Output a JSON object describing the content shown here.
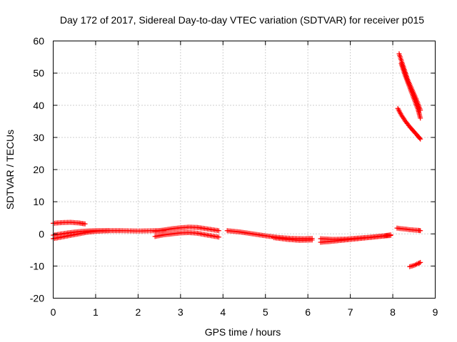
{
  "chart_data": {
    "type": "scatter",
    "title": "Day 172 of 2017, Sidereal Day-to-day VTEC variation (SDTVAR) for receiver p015",
    "xlabel": "GPS time / hours",
    "ylabel": "SDTVAR / TECUs",
    "xlim": [
      0,
      9
    ],
    "ylim": [
      -20,
      60
    ],
    "xticks": [
      "0",
      "1",
      "2",
      "3",
      "4",
      "5",
      "6",
      "7",
      "8",
      "9"
    ],
    "yticks": [
      "-20",
      "-10",
      "0",
      "10",
      "20",
      "30",
      "40",
      "50",
      "60"
    ],
    "grid": true,
    "marker": "plus",
    "color": "#ff0000",
    "tracks": [
      {
        "x": [
          0.0,
          0.2,
          0.4,
          0.6,
          0.75
        ],
        "y": [
          3.3,
          3.5,
          3.6,
          3.4,
          3.1
        ]
      },
      {
        "x": [
          0.0,
          0.2,
          0.4,
          0.6,
          0.8,
          1.0,
          1.3,
          1.6,
          2.0,
          2.4,
          2.6
        ],
        "y": [
          -1.5,
          -1.0,
          -0.5,
          0.0,
          0.5,
          0.8,
          1.0,
          1.0,
          0.9,
          1.0,
          1.0
        ]
      },
      {
        "x": [
          0.0,
          0.2,
          0.4,
          0.6,
          0.8,
          1.0,
          1.3
        ],
        "y": [
          -0.4,
          0.0,
          0.4,
          0.7,
          0.9,
          1.0,
          1.0
        ]
      },
      {
        "x": [
          2.4,
          2.6,
          2.8,
          3.0,
          3.2,
          3.4,
          3.6,
          3.9
        ],
        "y": [
          -0.8,
          -0.3,
          0.0,
          0.3,
          0.4,
          0.2,
          -0.3,
          -1.0
        ]
      },
      {
        "x": [
          2.4,
          2.6,
          2.8,
          3.0,
          3.2,
          3.4,
          3.6,
          3.9
        ],
        "y": [
          0.8,
          1.2,
          1.6,
          1.9,
          2.1,
          2.0,
          1.6,
          1.0
        ]
      },
      {
        "x": [
          4.1,
          4.4,
          4.7,
          5.0,
          5.3,
          5.6,
          5.9,
          6.1
        ],
        "y": [
          1.0,
          0.6,
          0.0,
          -0.6,
          -1.1,
          -1.4,
          -1.5,
          -1.4
        ]
      },
      {
        "x": [
          5.2,
          5.5,
          5.8,
          6.1
        ],
        "y": [
          -1.2,
          -1.7,
          -2.0,
          -1.9
        ]
      },
      {
        "x": [
          6.3,
          6.5,
          6.8,
          7.1,
          7.4,
          7.7,
          7.95
        ],
        "y": [
          -2.6,
          -2.4,
          -2.0,
          -1.6,
          -1.2,
          -0.8,
          -0.5
        ]
      },
      {
        "x": [
          6.3,
          6.6,
          6.9,
          7.2,
          7.5,
          7.8,
          7.95
        ],
        "y": [
          -1.5,
          -1.7,
          -1.6,
          -1.3,
          -1.0,
          -0.6,
          -0.3
        ]
      },
      {
        "x": [
          8.15,
          8.25,
          8.35,
          8.45,
          8.55,
          8.65
        ],
        "y": [
          56.0,
          52.0,
          48.0,
          45.0,
          42.0,
          38.5
        ]
      },
      {
        "x": [
          8.2,
          8.3,
          8.4,
          8.5,
          8.6,
          8.65
        ],
        "y": [
          53.0,
          49.0,
          45.5,
          42.0,
          38.5,
          36.0
        ]
      },
      {
        "x": [
          8.12,
          8.2,
          8.3,
          8.4,
          8.5,
          8.6,
          8.65
        ],
        "y": [
          39.0,
          37.0,
          35.0,
          33.3,
          31.8,
          30.3,
          29.5
        ]
      },
      {
        "x": [
          8.1,
          8.2,
          8.3,
          8.4,
          8.5,
          8.6,
          8.65
        ],
        "y": [
          1.8,
          1.6,
          1.5,
          1.3,
          1.2,
          1.1,
          1.0
        ]
      },
      {
        "x": [
          8.4,
          8.5,
          8.6,
          8.65
        ],
        "y": [
          -10.2,
          -9.8,
          -9.2,
          -8.9
        ]
      }
    ]
  }
}
